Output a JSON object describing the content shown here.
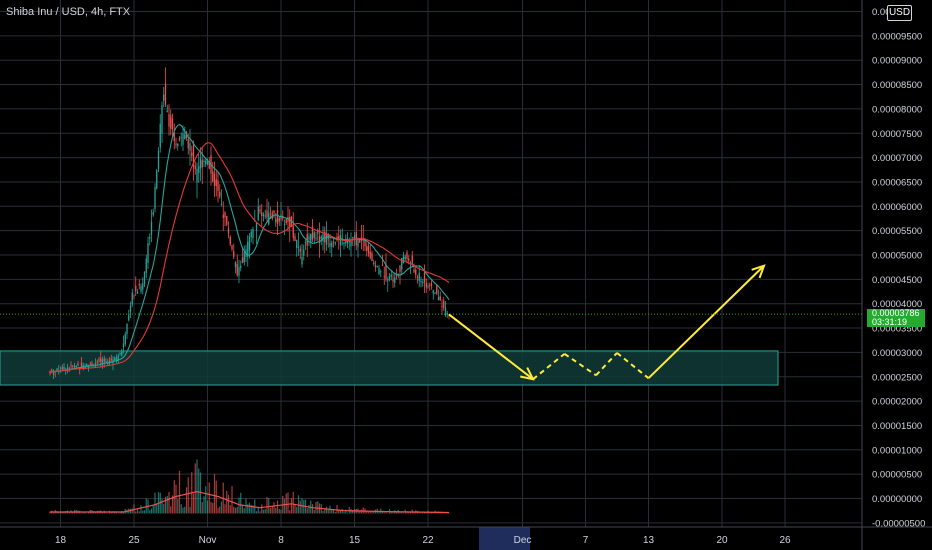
{
  "header": {
    "symbol": "Shiba Inu / USD, 4h, FTX",
    "currency_button": "USD"
  },
  "price_tag": {
    "value": "0.00003786",
    "countdown": "03:31:19"
  },
  "colors": {
    "background": "#000000",
    "grid": "#2a2e39",
    "up": "#26a69a",
    "down": "#ef5350",
    "ma_fast": "#26a69a",
    "ma_slow": "#e53935",
    "volume_ma": "#ef5350",
    "zone_fill": "#0f3b37",
    "zone_border": "#26a69a",
    "projection": "#ffeb3b",
    "current_price": "#22ab2e",
    "axis_text": "#d1d4dc",
    "time_highlight": "#1e2d5c"
  },
  "chart_data": {
    "type": "candlestick",
    "title": "Shiba Inu / USD, 4h, FTX",
    "y_axis": {
      "ticks": [
        "0.00010000",
        "0.00009500",
        "0.00009000",
        "0.00008500",
        "0.00008000",
        "0.00007500",
        "0.00007000",
        "0.00006500",
        "0.00006000",
        "0.00005500",
        "0.00005000",
        "0.00004500",
        "0.00004000",
        "0.00003500",
        "0.00003000",
        "0.00002500",
        "0.00002000",
        "0.00001500",
        "0.00001000",
        "0.00000500",
        "0.00000000",
        "-0.00000500"
      ],
      "first_tick_shown": "0.0001"
    },
    "x_axis": {
      "ticks": [
        "18",
        "25",
        "Nov",
        "8",
        "15",
        "22",
        "Dec",
        "7",
        "13",
        "20",
        "26"
      ]
    },
    "current_price": 3.786e-05,
    "support_zone": {
      "low": 2.33e-05,
      "high": 3.03e-05
    },
    "projection_path": [
      {
        "date": "Nov 24",
        "price": 3.78e-05
      },
      {
        "date": "Dec 2",
        "price": 2.45e-05
      },
      {
        "date": "Dec 5",
        "price": 2.97e-05
      },
      {
        "date": "Dec 8",
        "price": 2.53e-05
      },
      {
        "date": "Dec 10",
        "price": 2.99e-05
      },
      {
        "date": "Dec 13",
        "price": 2.47e-05
      },
      {
        "date": "Dec 24",
        "price": 4.78e-05
      }
    ],
    "price_path": [
      {
        "date": "Oct 17",
        "price": 2.6e-05
      },
      {
        "date": "Oct 19",
        "price": 2.7e-05
      },
      {
        "date": "Oct 21",
        "price": 2.75e-05
      },
      {
        "date": "Oct 23",
        "price": 2.85e-05
      },
      {
        "date": "Oct 24",
        "price": 3e-05
      },
      {
        "date": "Oct 25",
        "price": 4.2e-05
      },
      {
        "date": "Oct 26",
        "price": 4.4e-05
      },
      {
        "date": "Oct 27",
        "price": 6e-05
      },
      {
        "date": "Oct 28",
        "price": 8.4e-05
      },
      {
        "date": "Oct 29",
        "price": 7.2e-05
      },
      {
        "date": "Oct 30",
        "price": 7.5e-05
      },
      {
        "date": "Oct 31",
        "price": 6.8e-05
      },
      {
        "date": "Nov 1",
        "price": 7e-05
      },
      {
        "date": "Nov 2",
        "price": 6.4e-05
      },
      {
        "date": "Nov 3",
        "price": 5.6e-05
      },
      {
        "date": "Nov 4",
        "price": 4.6e-05
      },
      {
        "date": "Nov 5",
        "price": 5.2e-05
      },
      {
        "date": "Nov 6",
        "price": 5.9e-05
      },
      {
        "date": "Nov 7",
        "price": 5.8e-05
      },
      {
        "date": "Nov 9",
        "price": 5.65e-05
      },
      {
        "date": "Nov 10",
        "price": 5e-05
      },
      {
        "date": "Nov 11",
        "price": 5.45e-05
      },
      {
        "date": "Nov 13",
        "price": 5.3e-05
      },
      {
        "date": "Nov 16",
        "price": 5.3e-05
      },
      {
        "date": "Nov 17",
        "price": 4.8e-05
      },
      {
        "date": "Nov 19",
        "price": 4.5e-05
      },
      {
        "date": "Nov 20",
        "price": 5e-05
      },
      {
        "date": "Nov 21",
        "price": 4.6e-05
      },
      {
        "date": "Nov 23",
        "price": 4.2e-05
      },
      {
        "date": "Nov 24",
        "price": 3.79e-05
      }
    ],
    "volume_ma_path": [
      {
        "date": "Oct 17",
        "value": 3e-07
      },
      {
        "date": "Oct 24",
        "value": 3e-07
      },
      {
        "date": "Oct 25",
        "value": 8e-07
      },
      {
        "date": "Oct 27",
        "value": 1.8e-06
      },
      {
        "date": "Oct 29",
        "value": 3.5e-06
      },
      {
        "date": "Oct 31",
        "value": 4.5e-06
      },
      {
        "date": "Nov 2",
        "value": 3.5e-06
      },
      {
        "date": "Nov 4",
        "value": 1.8e-06
      },
      {
        "date": "Nov 6",
        "value": 1.2e-06
      },
      {
        "date": "Nov 9",
        "value": 2e-06
      },
      {
        "date": "Nov 11",
        "value": 1.2e-06
      },
      {
        "date": "Nov 14",
        "value": 6e-07
      },
      {
        "date": "Nov 18",
        "value": 4e-07
      },
      {
        "date": "Nov 24",
        "value": 2e-07
      }
    ]
  }
}
